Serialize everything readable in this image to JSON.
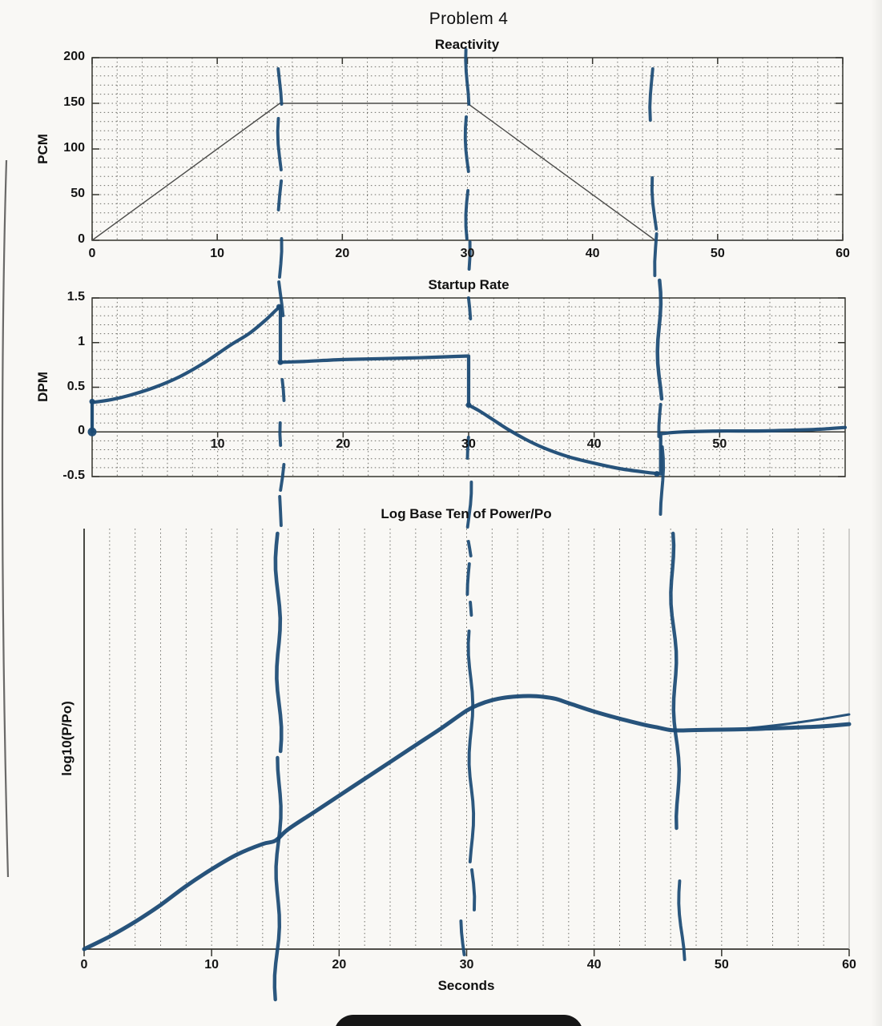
{
  "page": {
    "title": "Problem 4"
  },
  "ink_color": "#1b4a74",
  "chart_data": [
    {
      "type": "line",
      "title": "Reactivity",
      "ylabel": "PCM",
      "xlim": [
        0,
        60
      ],
      "ylim": [
        0,
        200
      ],
      "xticks": [
        0,
        10,
        20,
        30,
        40,
        50,
        60
      ],
      "yticks": [
        0,
        50,
        100,
        150,
        200
      ],
      "grid": {
        "style": "dotted",
        "x_minor_step": 2,
        "y_minor_step": 10
      },
      "series": [
        {
          "name": "reactivity-trapezoid",
          "color": "#4b4b49",
          "width": 1.4,
          "x": [
            0,
            15,
            30,
            45,
            60
          ],
          "y": [
            0,
            150,
            150,
            0,
            0
          ]
        }
      ],
      "hand_markers_s": [
        15,
        30,
        45
      ]
    },
    {
      "type": "line",
      "title": "Startup Rate",
      "ylabel": "DPM",
      "xlim": [
        0,
        60
      ],
      "ylim": [
        -0.5,
        1.5
      ],
      "xticks": [
        10,
        20,
        30,
        40,
        50
      ],
      "yticks": [
        -0.5,
        0,
        0.5,
        1,
        1.5
      ],
      "grid": {
        "style": "dotted",
        "x_minor_step": 2,
        "y_minor_step": 0.1
      },
      "series": [
        {
          "name": "startup-rate-hand-curve",
          "hand": true,
          "width": 4.2,
          "x": [
            0,
            0,
            1.5,
            3,
            5,
            7,
            9,
            11,
            12.5,
            13.8,
            14.7,
            15,
            15,
            17,
            20,
            23,
            26,
            29,
            30,
            30,
            30.8,
            31.8,
            33,
            34.5,
            36,
            38,
            40,
            42,
            44,
            45.3,
            45.3,
            47,
            50,
            53,
            56,
            58,
            60
          ],
          "y": [
            0,
            0.33,
            0.36,
            0.41,
            0.5,
            0.62,
            0.78,
            0.97,
            1.1,
            1.25,
            1.37,
            1.4,
            0.78,
            0.79,
            0.81,
            0.82,
            0.83,
            0.845,
            0.85,
            0.3,
            0.24,
            0.15,
            0.04,
            -0.08,
            -0.18,
            -0.28,
            -0.35,
            -0.41,
            -0.45,
            -0.47,
            -0.02,
            0.0,
            0.01,
            0.01,
            0.02,
            0.03,
            0.05
          ]
        }
      ],
      "point_marks": [
        {
          "x": 0,
          "y": 0,
          "kind": "dot"
        },
        {
          "x": 0,
          "y": 0.34,
          "kind": "blob"
        },
        {
          "x": 14.9,
          "y": 1.4,
          "kind": "blob"
        },
        {
          "x": 15,
          "y": 0.78,
          "kind": "blob"
        },
        {
          "x": 30,
          "y": 0.3,
          "kind": "blob"
        },
        {
          "x": 45,
          "y": -0.47,
          "kind": "blob"
        }
      ],
      "hand_markers_s": [
        15,
        30,
        45
      ]
    },
    {
      "type": "line",
      "title": "Log Base Ten of Power/Po",
      "ylabel": "log10(P/Po)",
      "xlabel": "Seconds",
      "xlim": [
        0,
        60
      ],
      "ylim": [
        0,
        1
      ],
      "ylim_note": "no y tick labels printed on this axis",
      "xticks": [
        0,
        10,
        20,
        30,
        40,
        50,
        60
      ],
      "grid": {
        "style": "dotted vertical only",
        "x_minor_step": 2
      },
      "series": [
        {
          "name": "log-power-hand-curve",
          "hand": true,
          "width": 5,
          "x": [
            0,
            2,
            4,
            6,
            8,
            10,
            12,
            14,
            15,
            16,
            18,
            20,
            22,
            24,
            26,
            28,
            30,
            31,
            32,
            33,
            34,
            35,
            36,
            37,
            38,
            40,
            42,
            44,
            45,
            46,
            47,
            48,
            50,
            52,
            54,
            56,
            58,
            60
          ],
          "y": [
            0,
            0.03,
            0.065,
            0.105,
            0.15,
            0.19,
            0.225,
            0.25,
            0.258,
            0.285,
            0.325,
            0.365,
            0.405,
            0.445,
            0.485,
            0.525,
            0.567,
            0.582,
            0.592,
            0.598,
            0.601,
            0.602,
            0.6,
            0.595,
            0.585,
            0.565,
            0.548,
            0.533,
            0.527,
            0.521,
            0.52,
            0.521,
            0.522,
            0.523,
            0.525,
            0.527,
            0.53,
            0.535
          ]
        },
        {
          "name": "terminal-split-stroke",
          "hand": true,
          "width": 3,
          "x": [
            52,
            55,
            58,
            60
          ],
          "y": [
            0.525,
            0.535,
            0.548,
            0.558
          ]
        }
      ],
      "hand_markers_s": [
        15,
        30,
        46
      ]
    }
  ]
}
